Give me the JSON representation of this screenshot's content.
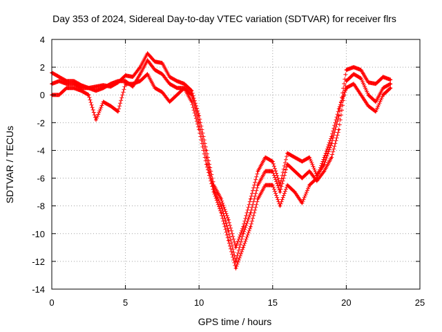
{
  "chart_data": {
    "type": "scatter",
    "title": "Day 353 of 2024, Sidereal Day-to-day VTEC variation (SDTVAR) for receiver flrs",
    "xlabel": "GPS time / hours",
    "ylabel": "SDTVAR / TECUs",
    "xlim": [
      0,
      25
    ],
    "ylim": [
      -14,
      4
    ],
    "xticks": [
      0,
      5,
      10,
      15,
      20,
      25
    ],
    "yticks": [
      -14,
      -12,
      -10,
      -8,
      -6,
      -4,
      -2,
      0,
      2,
      4
    ],
    "grid": true,
    "marker": "+",
    "color": "#ff0000",
    "series": [
      {
        "x": [
          0,
          0.5,
          1,
          1.5,
          2,
          2.5,
          3,
          3.5,
          4,
          4.5,
          5,
          5.5,
          6,
          6.5,
          7,
          7.5,
          8,
          8.5,
          9,
          9.5,
          10,
          10.5,
          11,
          11.5,
          12,
          12.5,
          13,
          13.5,
          14,
          14.5,
          15,
          15.5,
          16,
          16.5,
          17,
          17.5,
          18,
          18.5,
          19,
          19.5,
          20,
          20.5,
          21,
          21.5,
          22,
          22.5,
          23
        ],
        "y": [
          1.6,
          1.3,
          1.0,
          1.0,
          0.7,
          0.5,
          0.6,
          0.7,
          0.6,
          0.9,
          1.4,
          1.3,
          2.0,
          3.0,
          2.4,
          2.3,
          1.3,
          1.0,
          0.8,
          0.3,
          -1.5,
          -4.0,
          -6.5,
          -7.5,
          -9.0,
          -11.0,
          -9.5,
          -7.5,
          -5.5,
          -4.5,
          -4.8,
          -6.5,
          -4.2,
          -4.5,
          -4.8,
          -4.5,
          -5.8,
          -5.0,
          -3.5,
          -1.5,
          1.8,
          2.0,
          1.8,
          0.9,
          0.8,
          1.3,
          1.1
        ]
      },
      {
        "x": [
          0,
          0.5,
          1,
          1.5,
          2,
          2.5,
          3,
          3.5,
          4,
          4.5,
          5,
          5.5,
          6,
          6.5,
          7,
          7.5,
          8,
          8.5,
          9,
          9.5,
          10,
          10.5,
          11,
          11.5,
          12,
          12.5,
          13,
          13.5,
          14,
          14.5,
          15,
          15.5,
          16,
          16.5,
          17,
          17.5,
          18,
          18.5,
          19,
          19.5,
          20,
          20.5,
          21,
          21.5,
          22,
          22.5,
          23
        ],
        "y": [
          0.8,
          1.0,
          0.8,
          0.8,
          0.5,
          0.5,
          0.3,
          0.5,
          0.8,
          1.0,
          1.0,
          0.6,
          1.5,
          2.5,
          1.8,
          1.5,
          0.8,
          0.5,
          0.5,
          0.0,
          -2.0,
          -4.5,
          -6.8,
          -8.0,
          -9.8,
          -12.0,
          -10.0,
          -8.5,
          -6.5,
          -5.5,
          -5.5,
          -7.0,
          -5.0,
          -5.5,
          -6.0,
          -5.5,
          -6.2,
          -5.5,
          -4.5,
          -2.5,
          1.0,
          1.5,
          1.2,
          0.0,
          -0.5,
          0.5,
          0.8
        ]
      },
      {
        "x": [
          0,
          0.5,
          1,
          1.5,
          2,
          2.5,
          3,
          3.5,
          4,
          4.5,
          5,
          5.5,
          6,
          6.5,
          7,
          7.5,
          8,
          8.5,
          9,
          9.5,
          10,
          10.5,
          11,
          11.5,
          12,
          12.5,
          13,
          13.5,
          14,
          14.5,
          15,
          15.5,
          16,
          16.5,
          17,
          17.5,
          18,
          18.5,
          19,
          19.5,
          20,
          20.5,
          21,
          21.5,
          22,
          22.5,
          23
        ],
        "y": [
          0.0,
          0.0,
          0.5,
          0.5,
          0.3,
          0.0,
          -1.8,
          -0.5,
          -0.8,
          -1.2,
          0.8,
          0.8,
          1.0,
          1.5,
          0.5,
          0.2,
          -0.5,
          0.0,
          0.5,
          -0.5,
          -2.5,
          -5.0,
          -7.0,
          -8.5,
          -10.5,
          -12.5,
          -11.0,
          -9.5,
          -7.5,
          -6.5,
          -6.5,
          -8.0,
          -6.5,
          -7.0,
          -7.8,
          -6.5,
          -6.0,
          -4.5,
          -3.0,
          -1.0,
          0.5,
          0.8,
          0.0,
          -0.8,
          -1.2,
          0.0,
          0.5
        ]
      }
    ]
  }
}
